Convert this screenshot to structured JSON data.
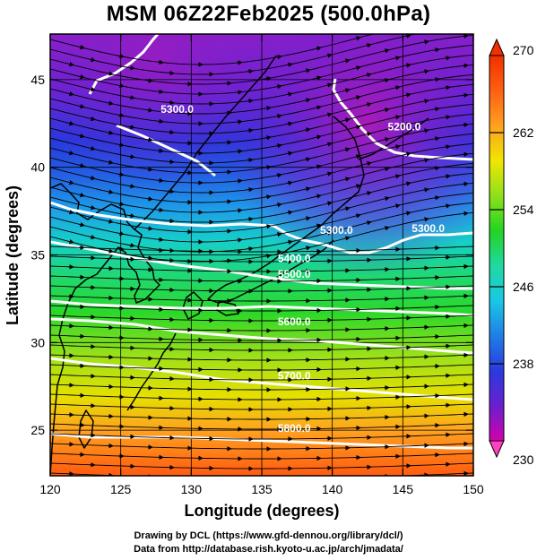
{
  "title": "MSM 06Z22Feb2025 (500.0hPa)",
  "map": {
    "xlabel": "Longitude (degrees)",
    "ylabel": "Latitude (degrees)",
    "xlim": [
      120,
      150
    ],
    "ylim": [
      22.4,
      47.6
    ],
    "x_ticks": [
      "120",
      "125",
      "130",
      "135",
      "140",
      "145",
      "150"
    ],
    "y_ticks": [
      "25",
      "30",
      "35",
      "40",
      "45"
    ],
    "x_tick_values": [
      120,
      125,
      130,
      135,
      140,
      145,
      150
    ],
    "y_tick_values": [
      25,
      30,
      35,
      40,
      45
    ],
    "grid": true,
    "field": "temperature (shaded), geopotential height (white contours), wind streamlines"
  },
  "colorbar": {
    "min": 230,
    "max": 270,
    "labels": [
      "270",
      "262",
      "254",
      "246",
      "238",
      "230"
    ],
    "label_values": [
      270,
      262,
      254,
      246,
      238,
      230
    ],
    "colors": [
      "#d400aa",
      "#6a1fd0",
      "#2a3ae0",
      "#1f7fe6",
      "#19c8e6",
      "#20d9a0",
      "#22d422",
      "#8ee01a",
      "#f0e600",
      "#ffa020",
      "#ff6010",
      "#f03000"
    ]
  },
  "contours": [
    {
      "label": "5300.0",
      "lon": 140.3,
      "lat": 36.2
    },
    {
      "label": "5200.0",
      "lon": 145.1,
      "lat": 42.1
    },
    {
      "label": "5300.0",
      "lon": 129.0,
      "lat": 43.1
    },
    {
      "label": "5300.0",
      "lon": 146.8,
      "lat": 36.3
    },
    {
      "label": "5400.0",
      "lon": 137.3,
      "lat": 34.6
    },
    {
      "label": "5500.0",
      "lon": 137.3,
      "lat": 33.7
    },
    {
      "label": "5600.0",
      "lon": 137.3,
      "lat": 31.0
    },
    {
      "label": "5700.0",
      "lon": 137.3,
      "lat": 27.9
    },
    {
      "label": "5800.0",
      "lon": 137.3,
      "lat": 24.9
    }
  ],
  "credits": {
    "line1": "Drawing by DCL (https://www.gfd-dennou.org/library/dcl/)",
    "line2": "Data from http://database.rish.kyoto-u.ac.jp/arch/jmadata/"
  }
}
